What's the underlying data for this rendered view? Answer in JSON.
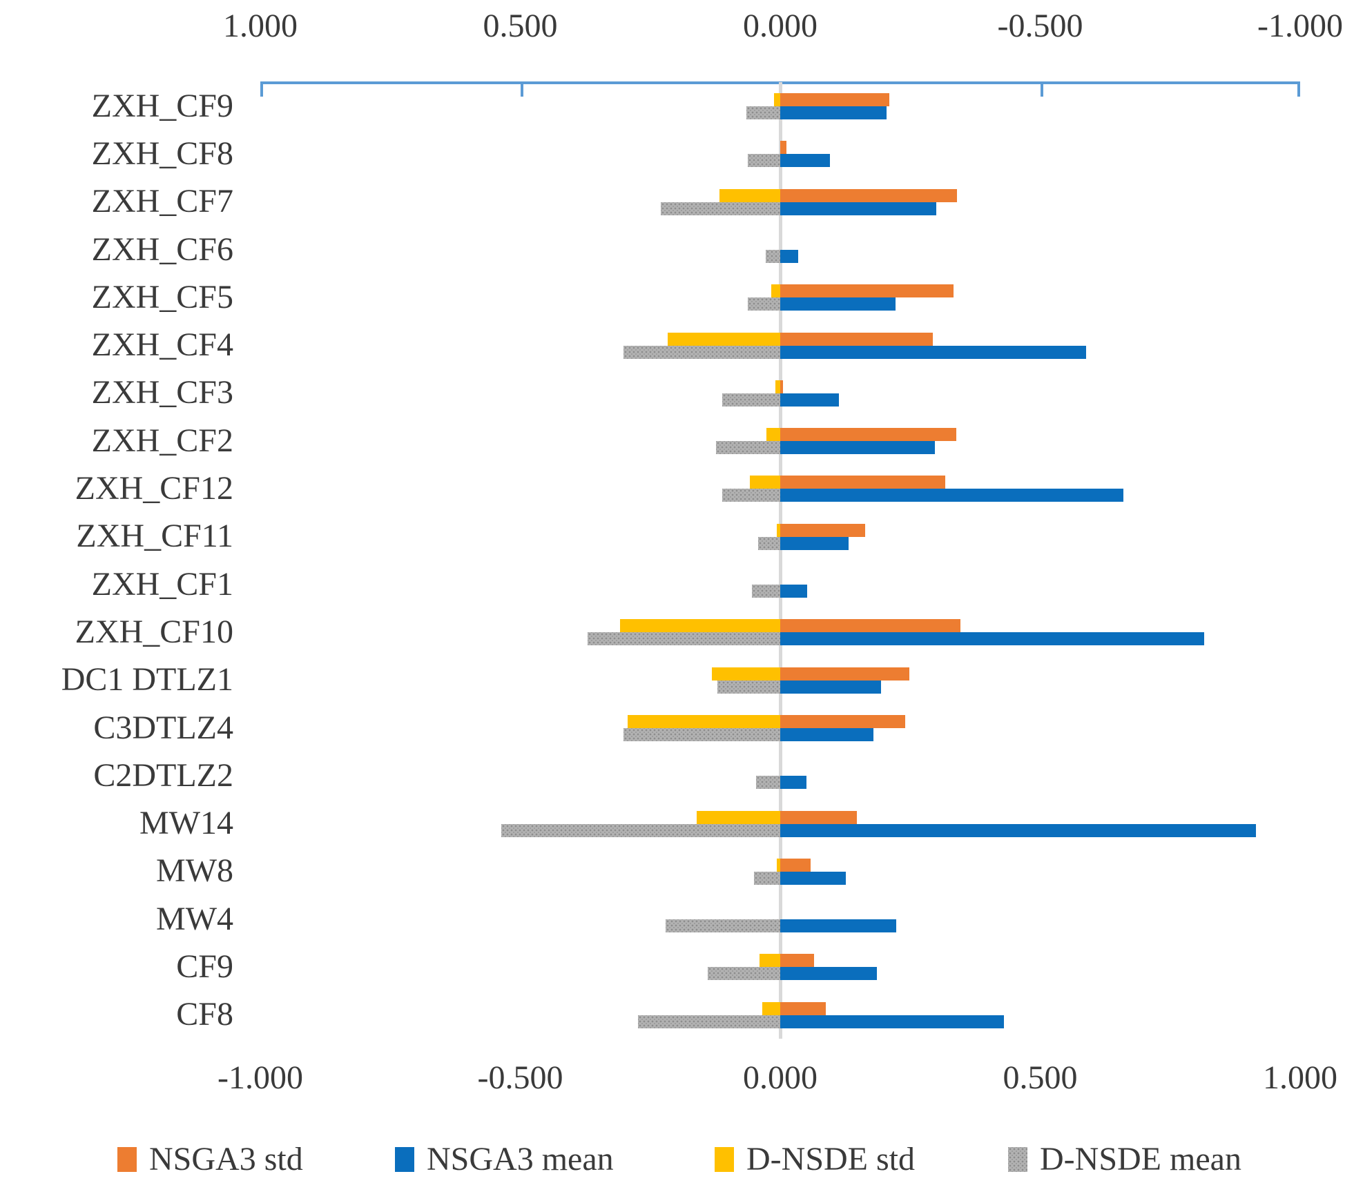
{
  "chart_data": {
    "type": "bar",
    "orientation": "horizontal",
    "title": "",
    "categories": [
      "ZXH_CF9",
      "ZXH_CF8",
      "ZXH_CF7",
      "ZXH_CF6",
      "ZXH_CF5",
      "ZXH_CF4",
      "ZXH_CF3",
      "ZXH_CF2",
      "ZXH_CF12",
      "ZXH_CF11",
      "ZXH_CF1",
      "ZXH_CF10",
      "DC1 DTLZ1",
      "C3DTLZ4",
      "C2DTLZ2",
      "MW14",
      "MW8",
      "MW4",
      "CF9",
      "CF8"
    ],
    "series": [
      {
        "name": "NSGA3 std",
        "color": "#ED7D31",
        "axis": "bottom",
        "direction": "right",
        "slot": "std",
        "values": [
          0.21,
          0.012,
          0.34,
          0.0,
          0.333,
          0.293,
          0.005,
          0.339,
          0.318,
          0.164,
          0.0,
          0.347,
          0.248,
          0.24,
          0.0,
          0.147,
          0.058,
          0.0,
          0.065,
          0.087
        ]
      },
      {
        "name": "NSGA3 mean",
        "color": "#0A6EBD",
        "axis": "bottom",
        "direction": "right",
        "slot": "mean",
        "values": [
          0.205,
          0.095,
          0.3,
          0.035,
          0.222,
          0.588,
          0.113,
          0.297,
          0.66,
          0.132,
          0.052,
          0.815,
          0.194,
          0.179,
          0.05,
          0.915,
          0.126,
          0.223,
          0.186,
          0.43
        ]
      },
      {
        "name": "D-NSDE std",
        "color": "#FFC000",
        "axis": "top",
        "direction": "left",
        "slot": "std",
        "values": [
          0.012,
          0.0,
          0.117,
          0.0,
          0.017,
          0.217,
          0.009,
          0.027,
          0.058,
          0.007,
          0.0,
          0.308,
          0.131,
          0.294,
          0.0,
          0.161,
          0.007,
          0.0,
          0.04,
          0.034
        ]
      },
      {
        "name": "D-NSDE mean",
        "color": "#b2b2b2",
        "axis": "top",
        "direction": "left",
        "slot": "mean",
        "pattern": "dotted",
        "values": [
          0.065,
          0.062,
          0.23,
          0.028,
          0.063,
          0.301,
          0.111,
          0.124,
          0.111,
          0.042,
          0.055,
          0.371,
          0.121,
          0.302,
          0.046,
          0.536,
          0.05,
          0.221,
          0.139,
          0.274
        ]
      }
    ],
    "axes": {
      "top": {
        "reversed": true,
        "min": 1.0,
        "max": -1.0,
        "tick_step": 0.5,
        "tick_labels": [
          "1.000",
          "0.500",
          "0.000",
          "-0.500",
          "-1.000"
        ]
      },
      "bottom": {
        "reversed": false,
        "min": -1.0,
        "max": 1.0,
        "tick_step": 0.5,
        "tick_labels": [
          "-1.000",
          "-0.500",
          "0.000",
          "0.500",
          "1.000"
        ]
      }
    },
    "gridlines": {
      "zero_line": true
    },
    "legend": {
      "position": "bottom",
      "entries": [
        "NSGA3 std",
        "NSGA3 mean",
        "D-NSDE std",
        "D-NSDE mean"
      ]
    },
    "colors": {
      "axis_line": "#5B9BD5",
      "zero_gridline": "#D9D9D9",
      "text": "#3a3a3a",
      "nsga3_std": "#ED7D31",
      "nsga3_mean": "#0A6EBD",
      "dnsde_std": "#FFC000",
      "dnsde_mean": "#ACACAC"
    }
  }
}
